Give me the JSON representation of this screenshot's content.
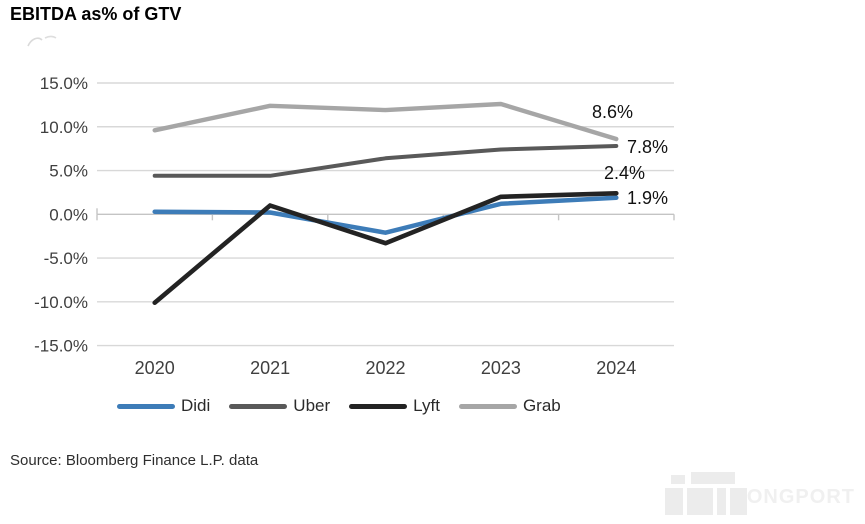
{
  "title": "EBITDA as% of GTV",
  "source": "Source: Bloomberg Finance L.P. data",
  "watermark": {
    "text": "LONGPORT"
  },
  "colors": {
    "didi": "#3d7cb8",
    "uber": "#595959",
    "lyft": "#232323",
    "grab": "#a6a6a6",
    "gridline": "#d8d8d8",
    "zero_axis": "#c4c4c4",
    "axis_text": "#3f3f3f",
    "data_label_text": "#111111"
  },
  "chart_data": {
    "type": "line",
    "title": "EBITDA as% of GTV",
    "categories": [
      "2020",
      "2021",
      "2022",
      "2023",
      "2024"
    ],
    "yticks": [
      15,
      10,
      5,
      0,
      -5,
      -10,
      -15
    ],
    "ylim": [
      -15,
      15
    ],
    "ytick_suffix": "%",
    "grid": true,
    "legend_position": "bottom",
    "series": [
      {
        "name": "Didi",
        "color": "#3d7cb8",
        "values": [
          0.3,
          0.2,
          -2.1,
          1.2,
          1.9
        ],
        "end_label": "1.9%"
      },
      {
        "name": "Uber",
        "color": "#595959",
        "values": [
          4.4,
          4.4,
          6.4,
          7.4,
          7.8
        ],
        "end_label": "7.8%"
      },
      {
        "name": "Lyft",
        "color": "#232323",
        "values": [
          -10.1,
          1.0,
          -3.3,
          2.0,
          2.4
        ],
        "end_label": "2.4%"
      },
      {
        "name": "Grab",
        "color": "#a6a6a6",
        "values": [
          9.6,
          12.4,
          11.9,
          12.6,
          8.6
        ],
        "end_label": "8.6%"
      }
    ]
  }
}
